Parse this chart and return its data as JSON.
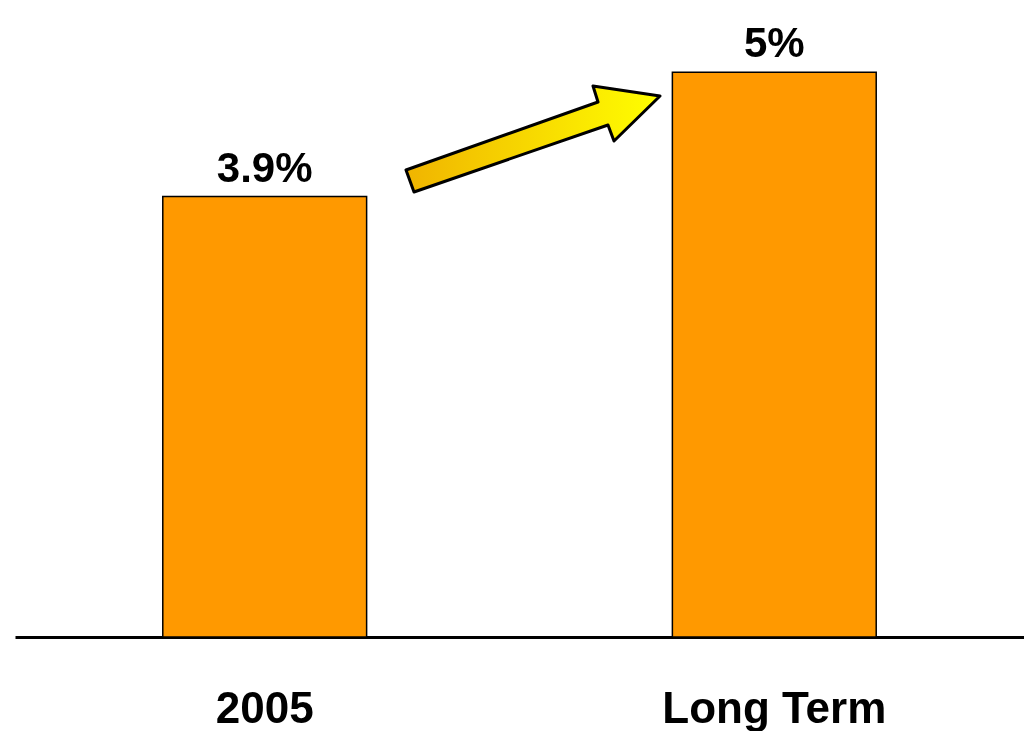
{
  "chart_data": {
    "type": "bar",
    "categories": [
      "2005",
      "Long Term"
    ],
    "values": [
      3.9,
      5
    ],
    "value_labels": [
      "3.9%",
      "5%"
    ],
    "color": "#ff9900",
    "grid": false
  }
}
